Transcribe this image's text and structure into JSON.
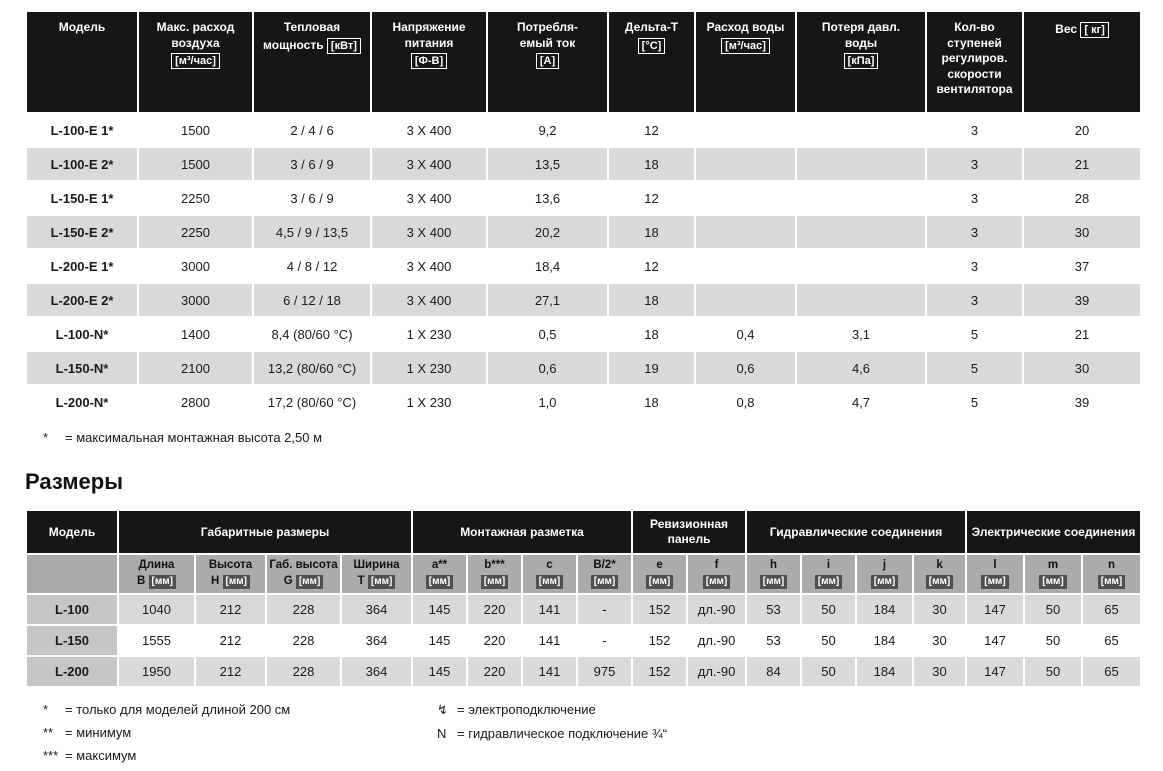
{
  "colors": {
    "table_header_bg": "#161616",
    "table_header_text": "#ffffff",
    "row_stripe_bg": "#d9d9d9",
    "subheader_bg": "#ababab",
    "model_column_bg": "#c6c6c6",
    "unit_badge_bg": "#4f4f4f"
  },
  "spec_table": {
    "headers": [
      [
        "Модель"
      ],
      [
        "Макс. расход",
        "воздуха",
        "[м³/час]"
      ],
      [
        "Тепловая",
        "мощность [кВт]"
      ],
      [
        "Напряжение",
        "питания",
        "[Ф-В]"
      ],
      [
        "Потребля-",
        "емый ток",
        "[A]"
      ],
      [
        "Дельта-T",
        "[°C]"
      ],
      [
        "Расход воды",
        "[м³/час]"
      ],
      [
        "Потеря давл.",
        "воды",
        "[кПа]"
      ],
      [
        "Кол-во",
        "ступеней",
        "регулиров.",
        "скорости",
        "вентилятора"
      ],
      [
        "Вес [ кг]"
      ]
    ],
    "rows": [
      {
        "model": "L-100-E 1*",
        "values": [
          "1500",
          "2 / 4 / 6",
          "3 X 400",
          "9,2",
          "12",
          "",
          "",
          "3",
          "20"
        ]
      },
      {
        "model": "L-100-E 2*",
        "values": [
          "1500",
          "3 / 6 / 9",
          "3 X 400",
          "13,5",
          "18",
          "",
          "",
          "3",
          "21"
        ]
      },
      {
        "model": "L-150-E 1*",
        "values": [
          "2250",
          "3 / 6 / 9",
          "3 X 400",
          "13,6",
          "12",
          "",
          "",
          "3",
          "28"
        ]
      },
      {
        "model": "L-150-E 2*",
        "values": [
          "2250",
          "4,5 / 9 / 13,5",
          "3 X 400",
          "20,2",
          "18",
          "",
          "",
          "3",
          "30"
        ]
      },
      {
        "model": "L-200-E 1*",
        "values": [
          "3000",
          "4 / 8 / 12",
          "3 X 400",
          "18,4",
          "12",
          "",
          "",
          "3",
          "37"
        ]
      },
      {
        "model": "L-200-E 2*",
        "values": [
          "3000",
          "6 / 12 / 18",
          "3 X 400",
          "27,1",
          "18",
          "",
          "",
          "3",
          "39"
        ]
      },
      {
        "model": "L-100-N*",
        "values": [
          "1400",
          "8,4 (80/60 °C)",
          "1 X 230",
          "0,5",
          "18",
          "0,4",
          "3,1",
          "5",
          "21"
        ]
      },
      {
        "model": "L-150-N*",
        "values": [
          "2100",
          "13,2 (80/60 °C)",
          "1 X 230",
          "0,6",
          "19",
          "0,6",
          "4,6",
          "5",
          "30"
        ]
      },
      {
        "model": "L-200-N*",
        "values": [
          "2800",
          "17,2 (80/60 °C)",
          "1 X 230",
          "1,0",
          "18",
          "0,8",
          "4,7",
          "5",
          "39"
        ]
      }
    ],
    "footnote_marker": "*",
    "footnote_text": "= максимальная монтажная высота 2,50 м"
  },
  "dim_table": {
    "title": "Размеры",
    "model_header": "Модель",
    "groups": [
      {
        "label": "Габаритные размеры",
        "span": 4
      },
      {
        "label": "Монтажная разметка",
        "span": 4
      },
      {
        "label": "Ревизионная панель",
        "span": 2
      },
      {
        "label": "Гидравлические соединения",
        "span": 4
      },
      {
        "label": "Электрические соединения",
        "span": 3
      }
    ],
    "subheaders": [
      [
        "Длина",
        "B [мм]"
      ],
      [
        "Высота",
        "H [мм]"
      ],
      [
        "Габ. высота",
        "G [мм]"
      ],
      [
        "Ширина",
        "T [мм]"
      ],
      [
        "a**",
        "[мм]"
      ],
      [
        "b***",
        "[мм]"
      ],
      [
        "c",
        "[мм]"
      ],
      [
        "B/2*",
        "[мм]"
      ],
      [
        "e",
        "[мм]"
      ],
      [
        "f",
        "[мм]"
      ],
      [
        "h",
        "[мм]"
      ],
      [
        "i",
        "[мм]"
      ],
      [
        "j",
        "[мм]"
      ],
      [
        "k",
        "[мм]"
      ],
      [
        "l",
        "[мм]"
      ],
      [
        "m",
        "[мм]"
      ],
      [
        "n",
        "[мм]"
      ]
    ],
    "rows": [
      {
        "model": "L-100",
        "values": [
          "1040",
          "212",
          "228",
          "364",
          "145",
          "220",
          "141",
          "-",
          "152",
          "дл.-90",
          "53",
          "50",
          "184",
          "30",
          "147",
          "50",
          "65"
        ]
      },
      {
        "model": "L-150",
        "values": [
          "1555",
          "212",
          "228",
          "364",
          "145",
          "220",
          "141",
          "-",
          "152",
          "дл.-90",
          "53",
          "50",
          "184",
          "30",
          "147",
          "50",
          "65"
        ]
      },
      {
        "model": "L-200",
        "values": [
          "1950",
          "212",
          "228",
          "364",
          "145",
          "220",
          "141",
          "975",
          "152",
          "дл.-90",
          "84",
          "50",
          "184",
          "30",
          "147",
          "50",
          "65"
        ]
      }
    ],
    "footnotes_left": [
      {
        "marker": "*",
        "text": "= только для моделей длиной 200 см"
      },
      {
        "marker": "**",
        "text": "= минимум"
      },
      {
        "marker": "***",
        "text": "= максимум"
      }
    ],
    "footnotes_right": [
      {
        "marker": "↯",
        "text": "= электроподключение"
      },
      {
        "marker": "N",
        "text": "= гидравлическое подключение ¾“"
      }
    ]
  }
}
